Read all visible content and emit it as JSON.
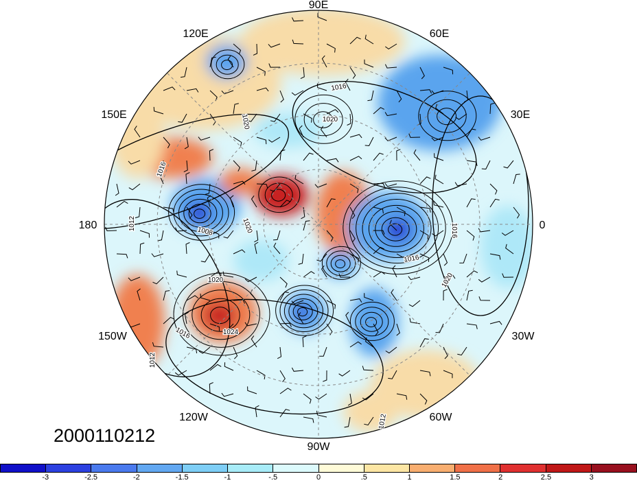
{
  "map": {
    "title": "",
    "projection": "polar-stereographic-north",
    "date_stamp": "2000110212",
    "lon_labels": [
      "90E",
      "120E",
      "60E",
      "150E",
      "30E",
      "180",
      "0",
      "150W",
      "30W",
      "120W",
      "60W",
      "90W"
    ],
    "pressure_contour_labels": [
      "1016",
      "1020",
      "1020",
      "1016",
      "1012",
      "1008",
      "1020",
      "1016",
      "1016",
      "1020",
      "1020",
      "1024",
      "1016",
      "1012",
      "1012"
    ],
    "shading_colors": {
      "deep_negative": "#1a1ad0",
      "negative": "#5aa4ee",
      "weak_negative": "#aee8f8",
      "neutral": "#fffde8",
      "weak_positive": "#f8dca8",
      "positive": "#f08050",
      "strong_positive": "#c82020"
    }
  },
  "colorbar": {
    "labels": [
      "-3",
      "-2.5",
      "-2",
      "-1.5",
      "-1",
      "-.5",
      "0",
      ".5",
      "1",
      "1.5",
      "2",
      "2.5",
      "3"
    ],
    "colors": [
      "#1010c8",
      "#2c40e0",
      "#4a7aee",
      "#62a8f2",
      "#7ecef6",
      "#a8ecf8",
      "#dcfafc",
      "#fffbd8",
      "#fce6a4",
      "#f8ae70",
      "#f07048",
      "#e03030",
      "#c01818",
      "#98101e"
    ]
  }
}
